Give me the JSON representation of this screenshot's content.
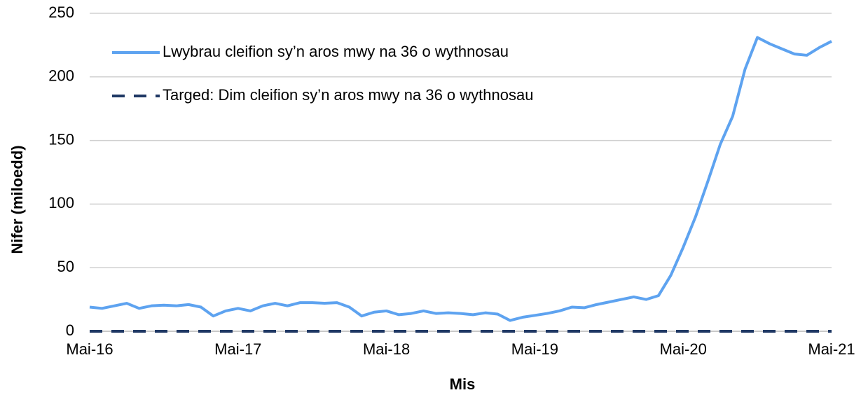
{
  "chart_data": {
    "type": "line",
    "x_label": "Mis",
    "y_label": "Nifer (miloedd)",
    "categories": [
      "Mai-16",
      null,
      null,
      null,
      null,
      null,
      null,
      null,
      null,
      null,
      null,
      null,
      "Mai-17",
      null,
      null,
      null,
      null,
      null,
      null,
      null,
      null,
      null,
      null,
      null,
      "Mai-18",
      null,
      null,
      null,
      null,
      null,
      null,
      null,
      null,
      null,
      null,
      null,
      "Mai-19",
      null,
      null,
      null,
      null,
      null,
      null,
      null,
      null,
      null,
      null,
      null,
      "Mai-20",
      null,
      null,
      null,
      null,
      null,
      null,
      null,
      null,
      null,
      null,
      null,
      "Mai-21"
    ],
    "series": [
      {
        "name": "Lwybrau cleifion sy’n aros mwy na 36 o wythnosau",
        "color": "#5ea3f0",
        "style": "solid",
        "values": [
          19,
          18,
          20,
          22,
          18,
          20,
          20.5,
          20,
          21,
          19,
          12,
          16,
          18,
          16,
          20,
          22,
          20,
          22.5,
          22.5,
          22,
          22.5,
          19,
          12,
          15,
          16,
          13,
          14,
          16,
          14,
          14.5,
          14,
          13,
          14.5,
          13.5,
          8.5,
          11,
          12.5,
          14,
          16,
          19,
          18.5,
          21,
          23,
          25,
          27,
          25,
          28,
          44,
          66,
          90,
          118,
          147,
          169,
          206,
          231,
          226,
          222,
          218,
          217,
          223,
          228
        ]
      },
      {
        "name": "Targed: Dim cleifion sy’n aros mwy na 36 o wythnosau",
        "color": "#1f3864",
        "style": "dashed",
        "values": [
          0,
          0,
          0,
          0,
          0,
          0,
          0,
          0,
          0,
          0,
          0,
          0,
          0,
          0,
          0,
          0,
          0,
          0,
          0,
          0,
          0,
          0,
          0,
          0,
          0,
          0,
          0,
          0,
          0,
          0,
          0,
          0,
          0,
          0,
          0,
          0,
          0,
          0,
          0,
          0,
          0,
          0,
          0,
          0,
          0,
          0,
          0,
          0,
          0,
          0,
          0,
          0,
          0,
          0,
          0,
          0,
          0,
          0,
          0,
          0,
          0
        ]
      }
    ],
    "ylim": [
      0,
      250
    ],
    "yticks": [
      0,
      50,
      100,
      150,
      200,
      250
    ],
    "grid": true,
    "legend": "top-left"
  }
}
